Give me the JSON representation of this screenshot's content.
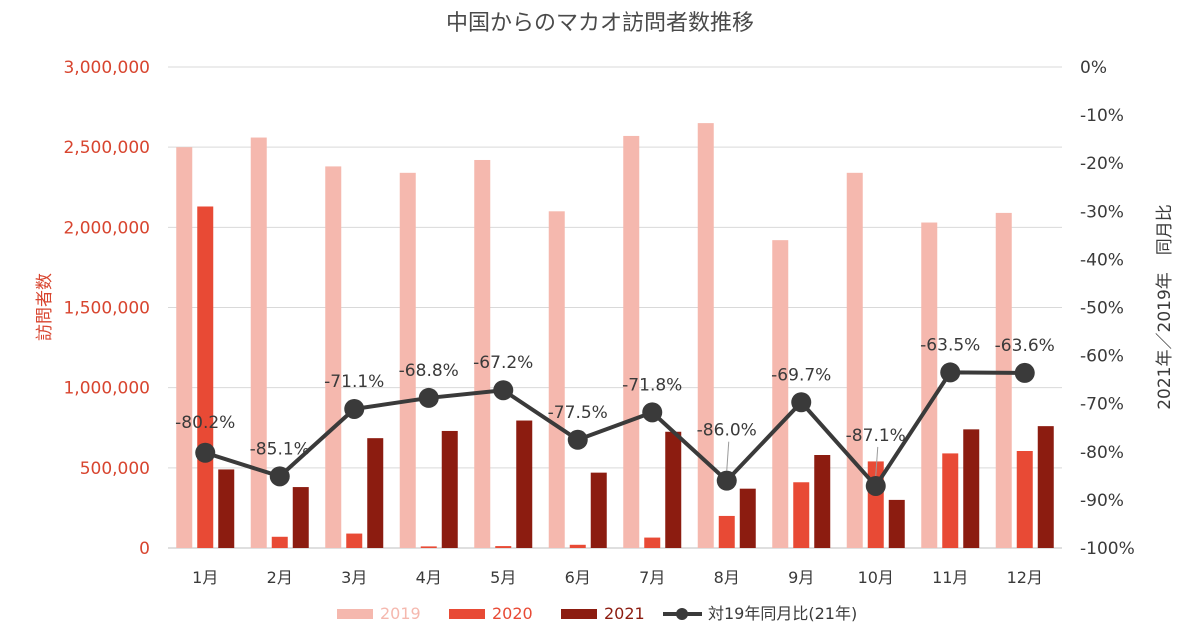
{
  "chart_data": {
    "type": "bar",
    "title": "中国からのマカオ訪問者数推移",
    "categories": [
      "1月",
      "2月",
      "3月",
      "4月",
      "5月",
      "6月",
      "7月",
      "8月",
      "9月",
      "10月",
      "11月",
      "12月"
    ],
    "series": [
      {
        "name": "2019",
        "color": "#f5b8ae",
        "axis": "left",
        "values": [
          2500000,
          2560000,
          2380000,
          2340000,
          2420000,
          2100000,
          2570000,
          2650000,
          1920000,
          2340000,
          2030000,
          2090000
        ]
      },
      {
        "name": "2020",
        "color": "#e84a35",
        "axis": "left",
        "values": [
          2130000,
          70000,
          90000,
          10000,
          12000,
          20000,
          65000,
          200000,
          410000,
          540000,
          590000,
          605000
        ]
      },
      {
        "name": "2021",
        "color": "#8c1c10",
        "axis": "left",
        "values": [
          490000,
          380000,
          685000,
          730000,
          795000,
          470000,
          725000,
          370000,
          580000,
          300000,
          740000,
          760000
        ]
      }
    ],
    "line_series": {
      "name": "対19年同月比(21年)",
      "color": "#3a3a3a",
      "axis": "right",
      "values": [
        -80.2,
        -85.1,
        -71.1,
        -68.8,
        -67.2,
        -77.5,
        -71.8,
        -86.0,
        -69.7,
        -87.1,
        -63.5,
        -63.6
      ],
      "labels": [
        "-80.2%",
        "-85.1%",
        "-71.1%",
        "-68.8%",
        "-67.2%",
        "-77.5%",
        "-71.8%",
        "-86.0%",
        "-69.7%",
        "-87.1%",
        "-63.5%",
        "-63.6%"
      ]
    },
    "ylabel": "訪問者数",
    "ylabel_right": "2021年／2019年　同月比",
    "ylim": [
      0,
      3000000
    ],
    "ylim_right": [
      -100,
      0
    ],
    "left_ticks": [
      0,
      500000,
      1000000,
      1500000,
      2000000,
      2500000,
      3000000
    ],
    "left_tick_labels": [
      "0",
      "500,000",
      "1,000,000",
      "1,500,000",
      "2,000,000",
      "2,500,000",
      "3,000,000"
    ],
    "right_ticks": [
      0,
      -10,
      -20,
      -30,
      -40,
      -50,
      -60,
      -70,
      -80,
      -90,
      -100
    ],
    "right_tick_labels": [
      "0%",
      "-10%",
      "-20%",
      "-30%",
      "-40%",
      "-50%",
      "-60%",
      "-70%",
      "-80%",
      "-90%",
      "-100%"
    ],
    "legend": [
      "2019",
      "2020",
      "2021",
      "対19年同月比(21年)"
    ],
    "legend_position": "bottom",
    "grid": true
  }
}
